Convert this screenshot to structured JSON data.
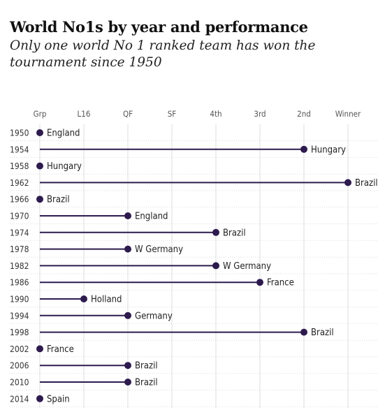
{
  "chart_data": {
    "type": "lollipop",
    "title": "World No1s by year and performance",
    "subtitle": "Only one world No 1 ranked team has won the tournament since 1950",
    "categories": [
      "Grp",
      "L16",
      "QF",
      "SF",
      "4th",
      "3rd",
      "2nd",
      "Winner"
    ],
    "rows": [
      {
        "year": "1950",
        "team": "England",
        "stage": "Grp"
      },
      {
        "year": "1954",
        "team": "Hungary",
        "stage": "2nd"
      },
      {
        "year": "1958",
        "team": "Hungary",
        "stage": "Grp"
      },
      {
        "year": "1962",
        "team": "Brazil",
        "stage": "Winner"
      },
      {
        "year": "1966",
        "team": "Brazil",
        "stage": "Grp"
      },
      {
        "year": "1970",
        "team": "England",
        "stage": "QF"
      },
      {
        "year": "1974",
        "team": "Brazil",
        "stage": "4th"
      },
      {
        "year": "1978",
        "team": "W Germany",
        "stage": "QF"
      },
      {
        "year": "1982",
        "team": "W Germany",
        "stage": "4th"
      },
      {
        "year": "1986",
        "team": "France",
        "stage": "3rd"
      },
      {
        "year": "1990",
        "team": "Holland",
        "stage": "L16"
      },
      {
        "year": "1994",
        "team": "Germany",
        "stage": "QF"
      },
      {
        "year": "1998",
        "team": "Brazil",
        "stage": "2nd"
      },
      {
        "year": "2002",
        "team": "France",
        "stage": "Grp"
      },
      {
        "year": "2006",
        "team": "Brazil",
        "stage": "QF"
      },
      {
        "year": "2010",
        "team": "Brazil",
        "stage": "QF"
      },
      {
        "year": "2014",
        "team": "Spain",
        "stage": "Grp"
      }
    ],
    "grid": true,
    "colors": {
      "mark": "#2d1b4e",
      "grid": "#dcdcdc",
      "row_rule": "#cfcfcf"
    }
  }
}
